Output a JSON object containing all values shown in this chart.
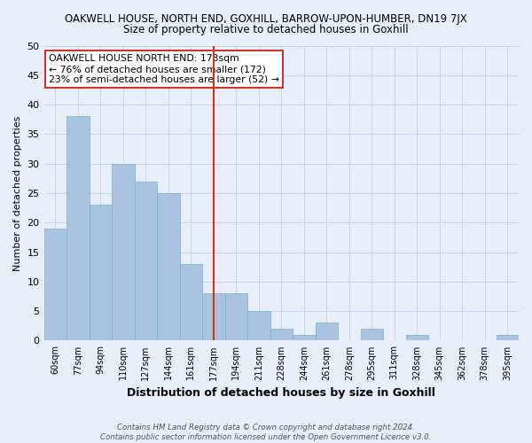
{
  "title": "OAKWELL HOUSE, NORTH END, GOXHILL, BARROW-UPON-HUMBER, DN19 7JX",
  "subtitle": "Size of property relative to detached houses in Goxhill",
  "xlabel": "Distribution of detached houses by size in Goxhill",
  "ylabel": "Number of detached properties",
  "footnote": "Contains HM Land Registry data © Crown copyright and database right 2024.\nContains public sector information licensed under the Open Government Licence v3.0.",
  "categories": [
    "60sqm",
    "77sqm",
    "94sqm",
    "110sqm",
    "127sqm",
    "144sqm",
    "161sqm",
    "177sqm",
    "194sqm",
    "211sqm",
    "228sqm",
    "244sqm",
    "261sqm",
    "278sqm",
    "295sqm",
    "311sqm",
    "328sqm",
    "345sqm",
    "362sqm",
    "378sqm",
    "395sqm"
  ],
  "values": [
    19,
    38,
    23,
    30,
    27,
    25,
    13,
    8,
    8,
    5,
    2,
    1,
    3,
    0,
    2,
    0,
    1,
    0,
    0,
    0,
    1
  ],
  "bar_color": "#aac4e0",
  "bar_edge_color": "#7aafd4",
  "bar_width": 1.0,
  "vline_x": 7,
  "vline_color": "#c0392b",
  "annotation_text": "OAKWELL HOUSE NORTH END: 173sqm\n← 76% of detached houses are smaller (172)\n23% of semi-detached houses are larger (52) →",
  "annotation_box_color": "#ffffff",
  "annotation_box_edge": "#c0392b",
  "ylim": [
    0,
    50
  ],
  "yticks": [
    0,
    5,
    10,
    15,
    20,
    25,
    30,
    35,
    40,
    45,
    50
  ],
  "grid_color": "#c8d4e8",
  "background_color": "#e8eef8"
}
